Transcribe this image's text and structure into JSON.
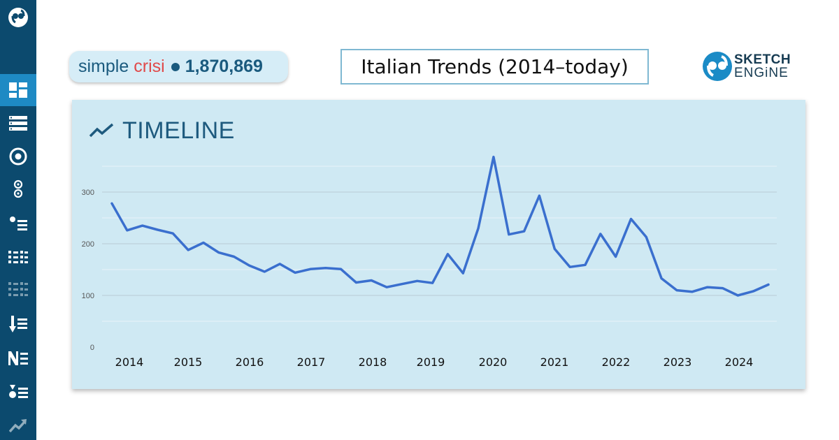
{
  "sidebar": {
    "items": [
      {
        "icon": "dashboard-icon",
        "active": true
      },
      {
        "icon": "list-icon",
        "active": false
      },
      {
        "icon": "target-icon",
        "active": false
      },
      {
        "icon": "circles-icon",
        "active": false
      },
      {
        "icon": "bullet-list-icon",
        "active": false
      },
      {
        "icon": "grid-list-icon",
        "active": false
      },
      {
        "icon": "grid-list-faded-icon",
        "active": false
      },
      {
        "icon": "sort-down-icon",
        "active": false
      },
      {
        "icon": "ne-icon",
        "active": false
      },
      {
        "icon": "shapes-list-icon",
        "active": false
      },
      {
        "icon": "trend-icon",
        "active": false
      }
    ]
  },
  "header": {
    "query_word1": "simple",
    "query_word2": "crisi",
    "query_count": "1,870,869",
    "title": "Italian Trends (2014–today)",
    "brand_line1": "SKETCH",
    "brand_line2": "ENGiNE"
  },
  "card": {
    "title": "TIMELINE"
  },
  "colors": {
    "sidebar": "#0c4a6e",
    "sidebar_active": "#1e8ac4",
    "card_bg": "#cfe9f3",
    "line": "#3a6fce",
    "accent_red": "#e04b4b"
  },
  "chart_data": {
    "type": "line",
    "title": "TIMELINE",
    "xlabel": "",
    "ylabel": "",
    "ylim": [
      0,
      370
    ],
    "yticks": [
      0,
      100,
      200,
      300
    ],
    "xticks": [
      "2014",
      "2015",
      "2016",
      "2017",
      "2018",
      "2019",
      "2020",
      "2021",
      "2022",
      "2023",
      "2024"
    ],
    "grid": true,
    "legend": "none",
    "series": [
      {
        "values": [
          278,
          226,
          235,
          227,
          220,
          188,
          202,
          183,
          175,
          158,
          146,
          161,
          144,
          151,
          153,
          151,
          125,
          129,
          116,
          122,
          128,
          124,
          180,
          143,
          230,
          368,
          218,
          224,
          293,
          190,
          155,
          159,
          219,
          175,
          248,
          213,
          133,
          110,
          107,
          116,
          114,
          100,
          108,
          121
        ]
      }
    ]
  }
}
